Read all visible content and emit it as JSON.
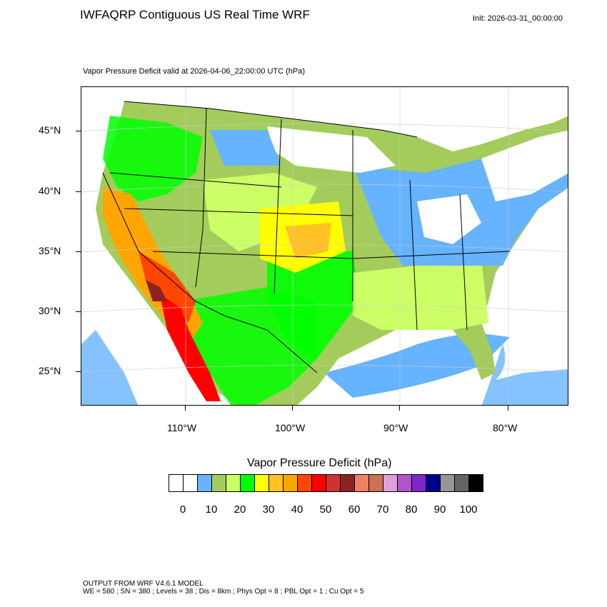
{
  "header": {
    "title": "IWFAQRP Contiguous US Real Time WRF",
    "init": "Init: 2026-03-31_00:00:00",
    "subtitle": "Vapor Pressure Deficit valid at 2026-04-06_22:00:00 UTC   (hPa)"
  },
  "axes": {
    "lat_labels": [
      "45°N",
      "40°N",
      "35°N",
      "30°N",
      "25°N"
    ],
    "lon_labels": [
      "110°W",
      "100°W",
      "90°W",
      "80°W"
    ]
  },
  "colorbar": {
    "title": "Vapor Pressure Deficit  (hPa)",
    "labels": [
      "0",
      "10",
      "20",
      "30",
      "40",
      "50",
      "60",
      "70",
      "80",
      "90",
      "100"
    ],
    "colors": [
      "#ffffff",
      "#ffffff",
      "#66b3ff",
      "#a3cc5c",
      "#ccff66",
      "#00ff00",
      "#ffff00",
      "#ffc125",
      "#ffa500",
      "#ff4500",
      "#ff0000",
      "#cd3333",
      "#8b2323",
      "#ef8066",
      "#cd7055",
      "#dda0dd",
      "#b452cd",
      "#7d26cd",
      "#00008b",
      "#969696",
      "#646464",
      "#000000"
    ]
  },
  "footer": {
    "line1": "OUTPUT FROM WRF V4.6.1 MODEL",
    "line2": "WE = 580 ; SN = 380 ; Levels = 38 ; Dis = 8km ; Phys Opt = 8 ; PBL Opt = 1 ; Cu Opt = 5"
  }
}
